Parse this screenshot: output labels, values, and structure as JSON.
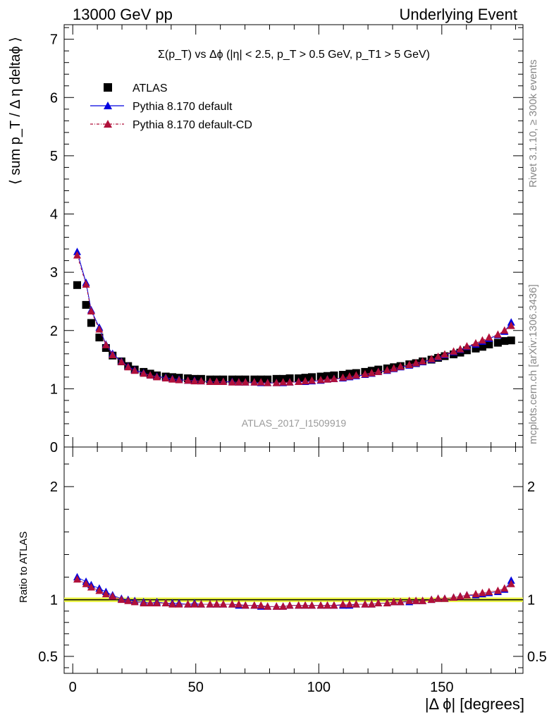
{
  "header": {
    "left": "13000 GeV pp",
    "right": "Underlying Event"
  },
  "side_labels": {
    "rivet": "Rivet 3.1.10, ≥ 300k events",
    "mcplots": "mcplots.cern.ch [arXiv:1306.3436]"
  },
  "chart_data": [
    {
      "type": "scatter",
      "panel": "main",
      "title": "Σ(p_T) vs Δϕ (|η| < 2.5, p_T > 0.5 GeV, p_T1 > 5 GeV)",
      "ylabel": "⟨ sum p_T / Δ η deltaϕ ⟩",
      "watermark": "ATLAS_2017_I1509919",
      "ylim": [
        0,
        7.25
      ],
      "xlim": [
        -3.5,
        183
      ],
      "yticks": [
        0,
        1,
        2,
        3,
        4,
        5,
        6,
        7
      ],
      "legend_position": "top-left",
      "x": [
        1.8,
        5.4,
        7.5,
        10.8,
        13.5,
        16.2,
        19.8,
        22.5,
        25.2,
        28.8,
        31.5,
        34.2,
        37.8,
        40.5,
        43.2,
        46.8,
        49.5,
        52.2,
        55.8,
        58.5,
        61.2,
        64.8,
        67.5,
        70.2,
        73.8,
        76.5,
        79.2,
        82.8,
        85.5,
        88.2,
        91.8,
        94.5,
        97.2,
        100.8,
        103.5,
        106.2,
        109.8,
        112.5,
        115.2,
        118.8,
        121.5,
        124.2,
        127.8,
        130.5,
        133.2,
        136.8,
        139.5,
        142.2,
        145.8,
        148.5,
        151.2,
        154.8,
        157.5,
        160.2,
        163.8,
        166.5,
        169.2,
        172.8,
        175.5,
        178.2
      ],
      "series": [
        {
          "name": "ATLAS",
          "marker": "square",
          "color": "#000000",
          "values": [
            2.78,
            2.44,
            2.13,
            1.88,
            1.7,
            1.57,
            1.47,
            1.39,
            1.33,
            1.29,
            1.26,
            1.23,
            1.21,
            1.2,
            1.19,
            1.18,
            1.17,
            1.17,
            1.16,
            1.16,
            1.16,
            1.16,
            1.16,
            1.16,
            1.16,
            1.16,
            1.16,
            1.17,
            1.17,
            1.18,
            1.18,
            1.19,
            1.2,
            1.21,
            1.22,
            1.23,
            1.24,
            1.26,
            1.27,
            1.29,
            1.31,
            1.33,
            1.35,
            1.37,
            1.39,
            1.42,
            1.44,
            1.47,
            1.5,
            1.53,
            1.56,
            1.59,
            1.62,
            1.66,
            1.69,
            1.72,
            1.76,
            1.79,
            1.82,
            1.83
          ]
        },
        {
          "name": "Pythia 8.170 default",
          "marker": "triangle",
          "color": "#0000e0",
          "values": [
            3.35,
            2.82,
            2.35,
            2.05,
            1.76,
            1.6,
            1.47,
            1.38,
            1.32,
            1.27,
            1.23,
            1.21,
            1.19,
            1.17,
            1.16,
            1.14,
            1.14,
            1.13,
            1.12,
            1.12,
            1.12,
            1.12,
            1.11,
            1.11,
            1.11,
            1.1,
            1.1,
            1.1,
            1.1,
            1.11,
            1.12,
            1.12,
            1.13,
            1.14,
            1.16,
            1.17,
            1.18,
            1.2,
            1.22,
            1.24,
            1.26,
            1.29,
            1.31,
            1.34,
            1.37,
            1.4,
            1.43,
            1.46,
            1.5,
            1.54,
            1.58,
            1.63,
            1.67,
            1.72,
            1.76,
            1.81,
            1.86,
            1.92,
            1.98,
            2.14
          ]
        },
        {
          "name": "Pythia 8.170 default-CD",
          "marker": "triangle",
          "color": "#b0103a",
          "values": [
            3.29,
            2.79,
            2.33,
            2.02,
            1.75,
            1.58,
            1.46,
            1.37,
            1.31,
            1.26,
            1.23,
            1.2,
            1.18,
            1.16,
            1.15,
            1.14,
            1.13,
            1.13,
            1.12,
            1.12,
            1.12,
            1.11,
            1.11,
            1.11,
            1.11,
            1.11,
            1.1,
            1.1,
            1.11,
            1.11,
            1.12,
            1.13,
            1.14,
            1.15,
            1.16,
            1.17,
            1.19,
            1.21,
            1.23,
            1.25,
            1.27,
            1.29,
            1.32,
            1.35,
            1.38,
            1.41,
            1.44,
            1.47,
            1.51,
            1.55,
            1.59,
            1.64,
            1.68,
            1.73,
            1.78,
            1.83,
            1.88,
            1.93,
            2.0,
            2.08
          ]
        }
      ]
    },
    {
      "type": "scatter",
      "panel": "ratio",
      "ylabel": "Ratio to ATLAS",
      "xlabel": "|Δ ϕ| [degrees]",
      "ylim": [
        0.35,
        2.35
      ],
      "xlim": [
        -3.5,
        183
      ],
      "xticks": [
        0,
        50,
        100,
        150
      ],
      "yticks": [
        0.5,
        1,
        2
      ],
      "band": {
        "low": 0.98,
        "high": 1.02,
        "color": "#ecf542"
      },
      "series": [
        {
          "name": "Pythia 8.170 default",
          "color": "#0000e0",
          "values": [
            1.2,
            1.16,
            1.13,
            1.1,
            1.07,
            1.04,
            1.01,
            1.0,
            0.99,
            0.98,
            0.97,
            0.98,
            0.97,
            0.97,
            0.97,
            0.96,
            0.97,
            0.96,
            0.96,
            0.96,
            0.96,
            0.96,
            0.95,
            0.95,
            0.95,
            0.94,
            0.94,
            0.94,
            0.94,
            0.95,
            0.95,
            0.95,
            0.95,
            0.95,
            0.95,
            0.95,
            0.95,
            0.95,
            0.96,
            0.96,
            0.96,
            0.97,
            0.97,
            0.98,
            0.98,
            0.98,
            0.99,
            0.99,
            1.0,
            1.01,
            1.01,
            1.02,
            1.03,
            1.04,
            1.04,
            1.05,
            1.06,
            1.07,
            1.09,
            1.17
          ]
        },
        {
          "name": "Pythia 8.170 default-CD",
          "color": "#b0103a",
          "values": [
            1.18,
            1.14,
            1.11,
            1.08,
            1.05,
            1.03,
            1.0,
            0.99,
            0.98,
            0.97,
            0.97,
            0.97,
            0.97,
            0.96,
            0.96,
            0.96,
            0.96,
            0.96,
            0.96,
            0.96,
            0.96,
            0.96,
            0.96,
            0.95,
            0.95,
            0.95,
            0.94,
            0.94,
            0.94,
            0.95,
            0.95,
            0.95,
            0.95,
            0.95,
            0.95,
            0.95,
            0.96,
            0.96,
            0.96,
            0.96,
            0.96,
            0.97,
            0.97,
            0.98,
            0.98,
            0.99,
            0.99,
            0.99,
            1.0,
            1.01,
            1.01,
            1.02,
            1.03,
            1.04,
            1.05,
            1.06,
            1.07,
            1.08,
            1.1,
            1.14
          ]
        }
      ]
    }
  ]
}
